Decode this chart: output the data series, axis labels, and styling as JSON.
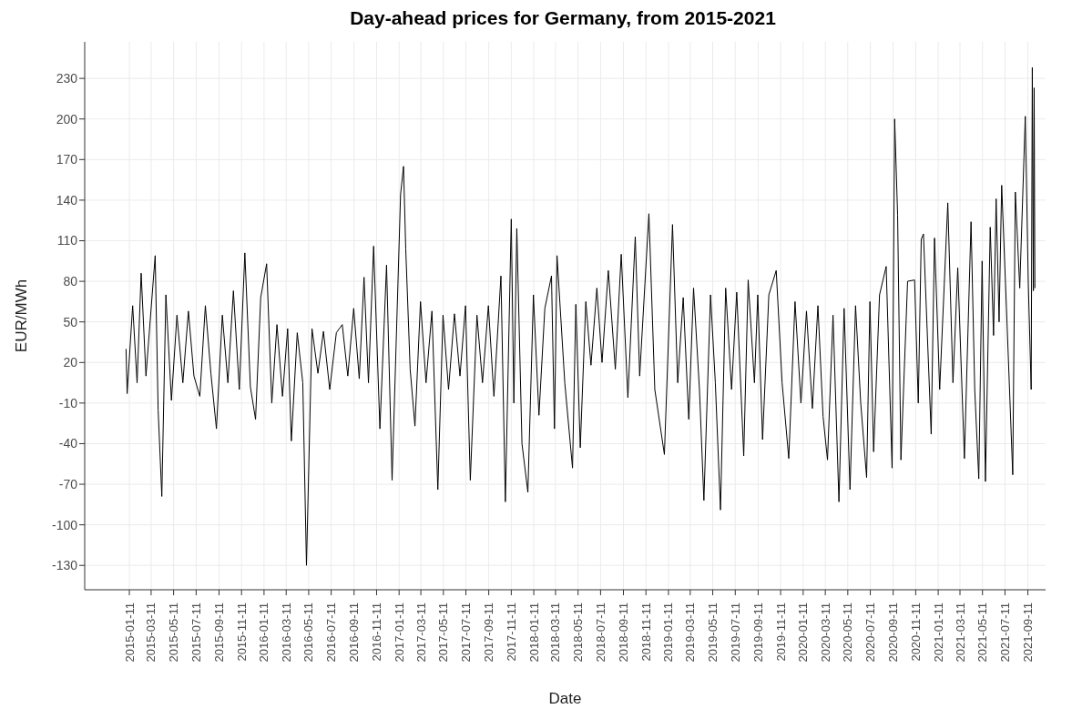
{
  "chart_data": {
    "type": "line",
    "title": "Day-ahead prices for Germany, from 2015-2021",
    "xlabel": "Date",
    "ylabel": "EUR/MWh",
    "color": "#000000",
    "grid": true,
    "xlim": [
      "2014-09-12",
      "2021-10-29"
    ],
    "xticks": [
      "2015-01-11",
      "2015-03-11",
      "2015-05-11",
      "2015-07-11",
      "2015-09-11",
      "2015-11-11",
      "2016-01-11",
      "2016-03-11",
      "2016-05-11",
      "2016-07-11",
      "2016-09-11",
      "2016-11-11",
      "2017-01-11",
      "2017-03-11",
      "2017-05-11",
      "2017-07-11",
      "2017-09-11",
      "2017-11-11",
      "2018-01-11",
      "2018-03-11",
      "2018-05-11",
      "2018-07-11",
      "2018-09-11",
      "2018-11-11",
      "2019-01-11",
      "2019-03-11",
      "2019-05-11",
      "2019-07-11",
      "2019-09-11",
      "2019-11-11",
      "2020-01-11",
      "2020-03-11",
      "2020-05-11",
      "2020-07-11",
      "2020-09-11",
      "2020-11-11",
      "2021-01-11",
      "2021-03-11",
      "2021-05-11",
      "2021-07-11",
      "2021-09-11"
    ],
    "ylim": [
      -148,
      257
    ],
    "yticks": [
      -130,
      -100,
      -70,
      -40,
      -10,
      20,
      50,
      80,
      110,
      140,
      170,
      200,
      230
    ],
    "x": [
      "2015-01-02",
      "2015-01-05",
      "2015-01-20",
      "2015-02-01",
      "2015-02-12",
      "2015-02-25",
      "2015-03-22",
      "2015-03-30",
      "2015-04-09",
      "2015-04-20",
      "2015-05-05",
      "2015-05-20",
      "2015-06-05",
      "2015-06-20",
      "2015-07-05",
      "2015-07-21",
      "2015-08-05",
      "2015-08-20",
      "2015-09-04",
      "2015-09-20",
      "2015-10-05",
      "2015-10-20",
      "2015-11-05",
      "2015-11-20",
      "2015-12-05",
      "2015-12-19",
      "2016-01-02",
      "2016-01-18",
      "2016-02-01",
      "2016-02-15",
      "2016-03-01",
      "2016-03-15",
      "2016-03-25",
      "2016-04-10",
      "2016-04-25",
      "2016-05-05",
      "2016-05-20",
      "2016-06-05",
      "2016-06-20",
      "2016-07-07",
      "2016-07-25",
      "2016-08-10",
      "2016-08-25",
      "2016-09-10",
      "2016-09-25",
      "2016-10-08",
      "2016-10-20",
      "2016-11-03",
      "2016-11-20",
      "2016-12-08",
      "2016-12-23",
      "2017-01-15",
      "2017-01-23",
      "2017-01-29",
      "2017-02-10",
      "2017-02-23",
      "2017-03-10",
      "2017-03-25",
      "2017-04-10",
      "2017-04-26",
      "2017-05-10",
      "2017-05-25",
      "2017-06-10",
      "2017-06-25",
      "2017-07-10",
      "2017-07-23",
      "2017-08-10",
      "2017-08-25",
      "2017-09-10",
      "2017-09-25",
      "2017-10-14",
      "2017-10-26",
      "2017-11-11",
      "2017-11-18",
      "2017-11-26",
      "2017-12-10",
      "2017-12-26",
      "2018-01-10",
      "2018-01-25",
      "2018-02-10",
      "2018-02-28",
      "2018-03-08",
      "2018-03-15",
      "2018-04-05",
      "2018-04-26",
      "2018-05-05",
      "2018-05-17",
      "2018-06-01",
      "2018-06-15",
      "2018-07-01",
      "2018-07-15",
      "2018-08-01",
      "2018-08-20",
      "2018-09-05",
      "2018-09-23",
      "2018-10-13",
      "2018-10-25",
      "2018-11-19",
      "2018-12-05",
      "2018-12-31",
      "2019-01-22",
      "2019-02-05",
      "2019-02-20",
      "2019-03-07",
      "2019-03-20",
      "2019-04-05",
      "2019-04-17",
      "2019-05-05",
      "2019-05-18",
      "2019-06-01",
      "2019-06-15",
      "2019-07-01",
      "2019-07-15",
      "2019-08-03",
      "2019-08-15",
      "2019-09-01",
      "2019-09-10",
      "2019-09-23",
      "2019-10-10",
      "2019-10-30",
      "2019-11-15",
      "2019-12-03",
      "2019-12-20",
      "2020-01-05",
      "2020-01-20",
      "2020-02-05",
      "2020-02-20",
      "2020-03-05",
      "2020-03-17",
      "2020-04-01",
      "2020-04-17",
      "2020-05-01",
      "2020-05-17",
      "2020-06-01",
      "2020-06-15",
      "2020-07-01",
      "2020-07-10",
      "2020-07-20",
      "2020-08-05",
      "2020-08-23",
      "2020-09-08",
      "2020-09-15",
      "2020-09-23",
      "2020-10-02",
      "2020-10-20",
      "2020-11-08",
      "2020-11-18",
      "2020-11-26",
      "2020-12-02",
      "2020-12-23",
      "2021-01-01",
      "2021-01-15",
      "2021-02-06",
      "2021-02-20",
      "2021-03-05",
      "2021-03-23",
      "2021-04-10",
      "2021-04-20",
      "2021-05-01",
      "2021-05-10",
      "2021-05-19",
      "2021-06-01",
      "2021-06-10",
      "2021-06-17",
      "2021-06-25",
      "2021-07-02",
      "2021-07-15",
      "2021-08-01",
      "2021-08-08",
      "2021-08-20",
      "2021-09-04",
      "2021-09-12",
      "2021-09-20",
      "2021-09-23",
      "2021-09-26",
      "2021-09-28",
      "2021-09-30"
    ],
    "values": [
      30,
      -3,
      62,
      5,
      86,
      10,
      99,
      -15,
      -79,
      70,
      -8,
      55,
      5,
      58,
      10,
      -5,
      62,
      12,
      -29,
      55,
      5,
      73,
      0,
      101,
      2,
      -22,
      68,
      93,
      -10,
      48,
      -5,
      45,
      -38,
      42,
      5,
      -130,
      45,
      12,
      43,
      0,
      42,
      48,
      10,
      60,
      8,
      83,
      5,
      106,
      -29,
      92,
      -67,
      144,
      165,
      104,
      15,
      -27,
      65,
      5,
      58,
      -74,
      55,
      0,
      56,
      10,
      62,
      -67,
      55,
      5,
      62,
      -5,
      84,
      -83,
      126,
      -10,
      119,
      -40,
      -76,
      70,
      -19,
      60,
      84,
      -29,
      99,
      5,
      -58,
      63,
      -43,
      65,
      18,
      75,
      20,
      88,
      15,
      100,
      -6,
      113,
      10,
      130,
      0,
      -48,
      122,
      5,
      68,
      -22,
      75,
      0,
      -82,
      70,
      5,
      -89,
      75,
      0,
      72,
      -49,
      81,
      5,
      70,
      -37,
      70,
      88,
      5,
      -51,
      65,
      -10,
      58,
      -14,
      62,
      -20,
      -52,
      55,
      -83,
      60,
      -74,
      62,
      -10,
      -65,
      65,
      -46,
      70,
      91,
      -58,
      200,
      129,
      -52,
      80,
      81,
      -10,
      111,
      115,
      -33,
      112,
      0,
      138,
      5,
      90,
      -51,
      124,
      0,
      -66,
      95,
      -68,
      120,
      40,
      141,
      50,
      151,
      60,
      -63,
      146,
      75,
      202,
      80,
      0,
      238,
      73,
      223,
      75
    ]
  }
}
